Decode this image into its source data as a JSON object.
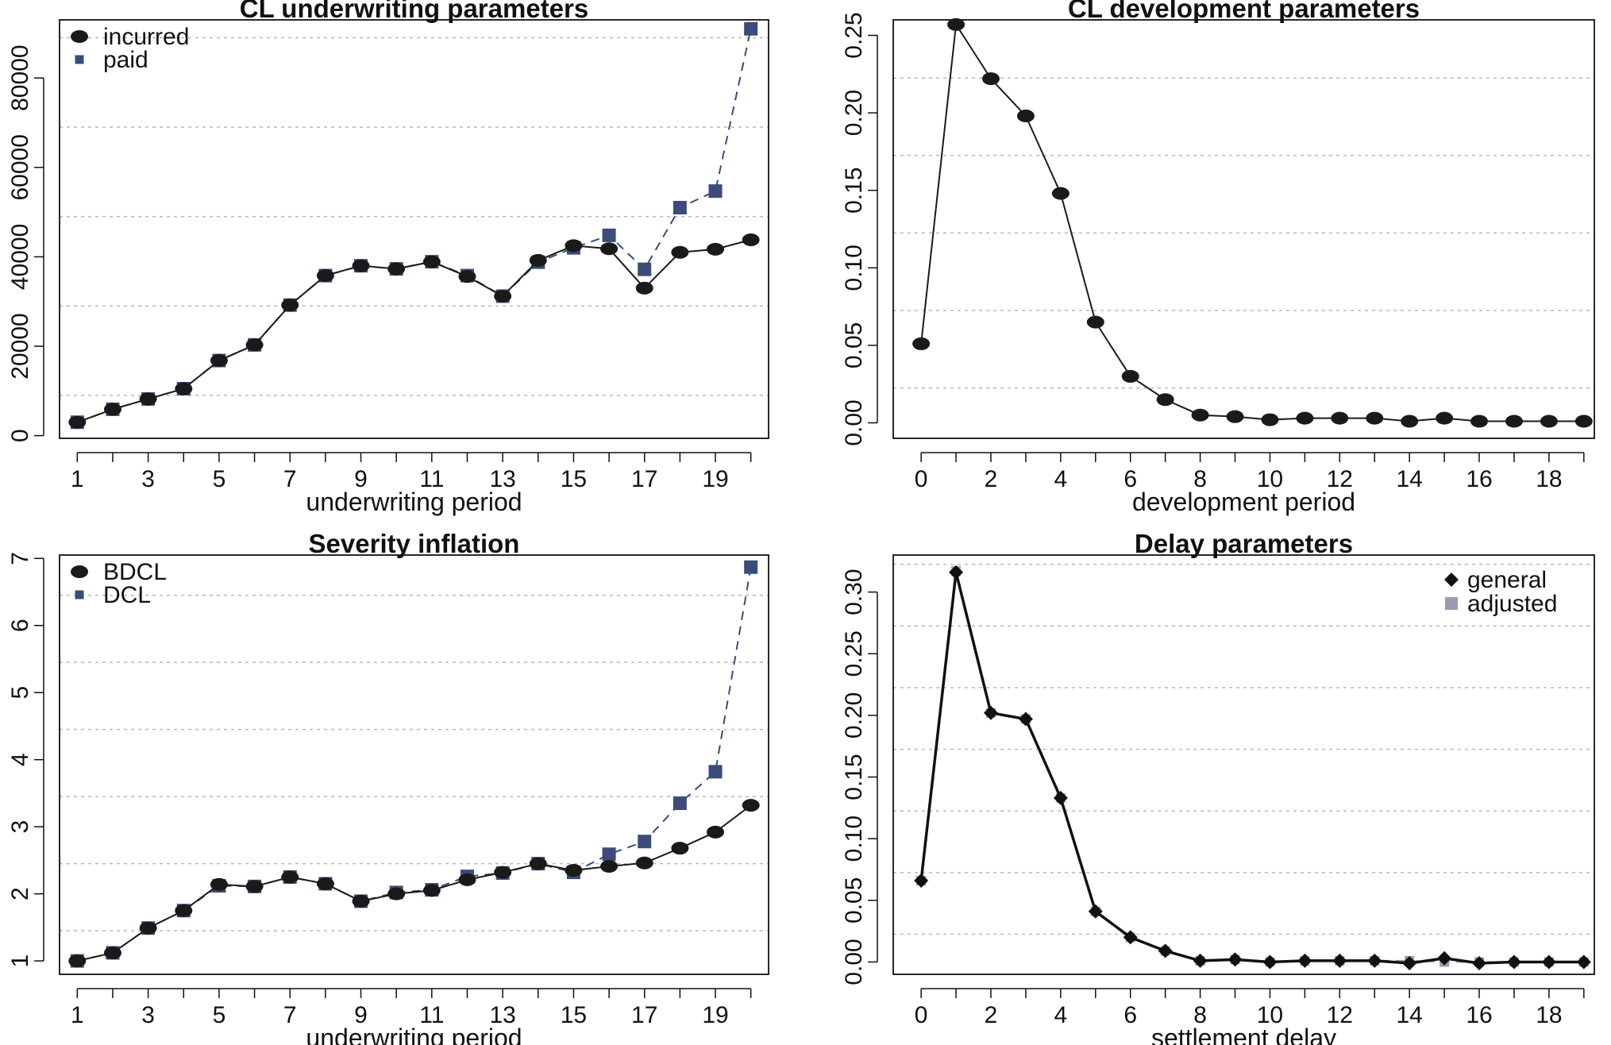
{
  "colors": {
    "incurred": "#1a1a1a",
    "paid": "#3b4b7a",
    "general": "#111111",
    "adjusted": "#9a9ab4",
    "grid": "#b8b8b8"
  },
  "chart_data": [
    {
      "type": "line",
      "title": "CL underwriting parameters",
      "xlabel": "underwriting period",
      "ylabel": "",
      "x": [
        1,
        2,
        3,
        4,
        5,
        6,
        7,
        8,
        9,
        10,
        11,
        12,
        13,
        14,
        15,
        16,
        17,
        18,
        19,
        20
      ],
      "xticks": [
        1,
        3,
        5,
        7,
        9,
        11,
        13,
        15,
        17,
        19
      ],
      "xlim": [
        0.5,
        20.5
      ],
      "yticks": [
        0,
        20000,
        40000,
        60000,
        80000
      ],
      "ylim": [
        -600,
        93000
      ],
      "grid": "horizontal dotted",
      "legend_position": "top-left",
      "series": [
        {
          "name": "incurred",
          "marker": "circle",
          "line": "solid",
          "values": [
            3000,
            5900,
            8200,
            10500,
            16800,
            20300,
            29200,
            35800,
            38000,
            37300,
            38900,
            35600,
            31200,
            39200,
            42500,
            41800,
            33000,
            41000,
            41700,
            43800
          ]
        },
        {
          "name": "paid",
          "marker": "square",
          "line": "dashed",
          "values": [
            3000,
            5900,
            8200,
            10500,
            16800,
            20300,
            29200,
            35800,
            38000,
            37300,
            38900,
            35800,
            31200,
            38800,
            42000,
            44800,
            37200,
            51000,
            54700,
            91000
          ]
        }
      ]
    },
    {
      "type": "line",
      "title": "CL development parameters",
      "xlabel": "development period",
      "ylabel": "",
      "x": [
        0,
        1,
        2,
        3,
        4,
        5,
        6,
        7,
        8,
        9,
        10,
        11,
        12,
        13,
        14,
        15,
        16,
        17,
        18,
        19
      ],
      "xticks": [
        0,
        2,
        4,
        6,
        8,
        10,
        12,
        14,
        16,
        18
      ],
      "xlim": [
        -0.8,
        19.3
      ],
      "yticks": [
        0.0,
        0.05,
        0.1,
        0.15,
        0.2,
        0.25
      ],
      "ylim": [
        -0.01,
        0.26
      ],
      "grid": "horizontal dotted",
      "series": [
        {
          "marker": "circle",
          "line": "solid",
          "values": [
            0.051,
            0.257,
            0.222,
            0.198,
            0.148,
            0.065,
            0.03,
            0.015,
            0.005,
            0.004,
            0.002,
            0.003,
            0.003,
            0.003,
            0.001,
            0.003,
            0.001,
            0.001,
            0.001,
            0.001
          ]
        }
      ]
    },
    {
      "type": "line",
      "title": "Severity inflation",
      "xlabel": "underwriting period",
      "ylabel": "",
      "x": [
        1,
        2,
        3,
        4,
        5,
        6,
        7,
        8,
        9,
        10,
        11,
        12,
        13,
        14,
        15,
        16,
        17,
        18,
        19,
        20
      ],
      "xticks": [
        1,
        3,
        5,
        7,
        9,
        11,
        13,
        15,
        17,
        19
      ],
      "xlim": [
        0.5,
        20.5
      ],
      "yticks": [
        1,
        2,
        3,
        4,
        5,
        6,
        7
      ],
      "ylim": [
        0.8,
        7.05
      ],
      "grid": "horizontal dotted",
      "legend_position": "top-left",
      "series": [
        {
          "name": "BDCL",
          "marker": "circle",
          "line": "solid",
          "values": [
            1.0,
            1.12,
            1.49,
            1.75,
            2.14,
            2.11,
            2.25,
            2.15,
            1.89,
            2.0,
            2.05,
            2.21,
            2.32,
            2.45,
            2.35,
            2.41,
            2.46,
            2.68,
            2.92,
            3.32
          ]
        },
        {
          "name": "DCL",
          "marker": "square",
          "line": "dashed",
          "values": [
            1.0,
            1.12,
            1.49,
            1.75,
            2.12,
            2.11,
            2.25,
            2.15,
            1.89,
            2.02,
            2.06,
            2.26,
            2.31,
            2.45,
            2.32,
            2.59,
            2.78,
            3.35,
            3.82,
            6.87
          ]
        }
      ]
    },
    {
      "type": "line",
      "title": "Delay parameters",
      "xlabel": "settlement delay",
      "ylabel": "",
      "x": [
        0,
        1,
        2,
        3,
        4,
        5,
        6,
        7,
        8,
        9,
        10,
        11,
        12,
        13,
        14,
        15,
        16,
        17,
        18,
        19
      ],
      "xticks": [
        0,
        2,
        4,
        6,
        8,
        10,
        12,
        14,
        16,
        18
      ],
      "xlim": [
        -0.8,
        19.3
      ],
      "yticks": [
        0.0,
        0.05,
        0.1,
        0.15,
        0.2,
        0.25,
        0.3
      ],
      "ylim": [
        -0.01,
        0.33
      ],
      "grid": "horizontal dotted",
      "legend_position": "top-right",
      "series": [
        {
          "name": "general",
          "marker": "diamond",
          "line": "solid",
          "values": [
            0.066,
            0.316,
            0.202,
            0.197,
            0.133,
            0.041,
            0.02,
            0.009,
            0.001,
            0.002,
            0.0,
            0.001,
            0.001,
            0.001,
            -0.001,
            0.003,
            -0.001,
            0.0,
            0.0,
            0.0
          ]
        },
        {
          "name": "adjusted",
          "marker": "square",
          "line": "dashed",
          "values": [
            0.066,
            0.317,
            0.202,
            0.197,
            0.133,
            0.041,
            0.02,
            0.009,
            0.001,
            0.002,
            0.0,
            0.001,
            0.001,
            0.001,
            0.001,
            0.0,
            0.0,
            0.0,
            0.0,
            0.0
          ]
        }
      ]
    }
  ]
}
